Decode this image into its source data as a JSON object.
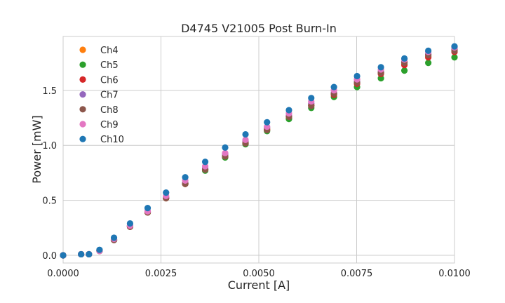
{
  "chart_data": {
    "type": "scatter",
    "title": "D4745 V21005 Post Burn-In",
    "xlabel": "Current [A]",
    "ylabel": "Power [mW]",
    "xlim": [
      0,
      0.01
    ],
    "ylim": [
      -0.07,
      1.99
    ],
    "xticks": [
      0,
      0.0025,
      0.005,
      0.0075,
      0.01
    ],
    "xtick_labels": [
      "0.0000",
      "0.0025",
      "0.0050",
      "0.0075",
      "0.0100"
    ],
    "yticks": [
      0,
      0.5,
      1.0,
      1.5
    ],
    "ytick_labels": [
      "0.0",
      "0.5",
      "1.0",
      "1.5"
    ],
    "grid": true,
    "legend_position": "top-left",
    "x": [
      0,
      0.00046,
      0.00066,
      0.00093,
      0.0013,
      0.00171,
      0.00216,
      0.00263,
      0.00312,
      0.00363,
      0.00414,
      0.00466,
      0.00521,
      0.00577,
      0.00634,
      0.00692,
      0.00751,
      0.00812,
      0.00872,
      0.00933,
      0.01
    ],
    "series": [
      {
        "name": "Ch4",
        "color": "#ff7f0e",
        "values": [
          0.0,
          0.01,
          0.01,
          0.04,
          0.14,
          0.26,
          0.39,
          0.52,
          0.65,
          0.78,
          0.9,
          1.03,
          1.15,
          1.26,
          1.37,
          1.47,
          1.57,
          1.66,
          1.74,
          1.81,
          1.87
        ]
      },
      {
        "name": "Ch5",
        "color": "#2ca02c",
        "values": [
          0.0,
          0.01,
          0.01,
          0.04,
          0.14,
          0.26,
          0.39,
          0.52,
          0.65,
          0.77,
          0.89,
          1.01,
          1.13,
          1.24,
          1.34,
          1.44,
          1.53,
          1.61,
          1.68,
          1.75,
          1.8
        ]
      },
      {
        "name": "Ch6",
        "color": "#d62728",
        "values": [
          0.0,
          0.01,
          0.01,
          0.04,
          0.14,
          0.26,
          0.39,
          0.52,
          0.65,
          0.78,
          0.9,
          1.02,
          1.14,
          1.26,
          1.36,
          1.46,
          1.56,
          1.65,
          1.73,
          1.8,
          1.85
        ]
      },
      {
        "name": "Ch7",
        "color": "#9467bd",
        "values": [
          0.0,
          0.01,
          0.01,
          0.04,
          0.14,
          0.27,
          0.4,
          0.53,
          0.66,
          0.79,
          0.92,
          1.04,
          1.16,
          1.27,
          1.38,
          1.48,
          1.58,
          1.67,
          1.76,
          1.83,
          1.88
        ]
      },
      {
        "name": "Ch8",
        "color": "#8c564b",
        "values": [
          0.0,
          0.01,
          0.01,
          0.04,
          0.14,
          0.26,
          0.39,
          0.52,
          0.65,
          0.78,
          0.9,
          1.02,
          1.14,
          1.26,
          1.36,
          1.47,
          1.57,
          1.66,
          1.75,
          1.82,
          1.86
        ]
      },
      {
        "name": "Ch9",
        "color": "#e377c2",
        "values": [
          0.0,
          0.01,
          0.01,
          0.04,
          0.15,
          0.27,
          0.4,
          0.54,
          0.68,
          0.81,
          0.93,
          1.05,
          1.17,
          1.29,
          1.4,
          1.5,
          1.6,
          1.69,
          1.78,
          1.85,
          1.89
        ]
      },
      {
        "name": "Ch10",
        "color": "#1f77b4",
        "values": [
          0.0,
          0.01,
          0.01,
          0.05,
          0.16,
          0.29,
          0.43,
          0.57,
          0.71,
          0.85,
          0.98,
          1.1,
          1.21,
          1.32,
          1.43,
          1.53,
          1.63,
          1.71,
          1.79,
          1.86,
          1.9
        ]
      }
    ]
  }
}
